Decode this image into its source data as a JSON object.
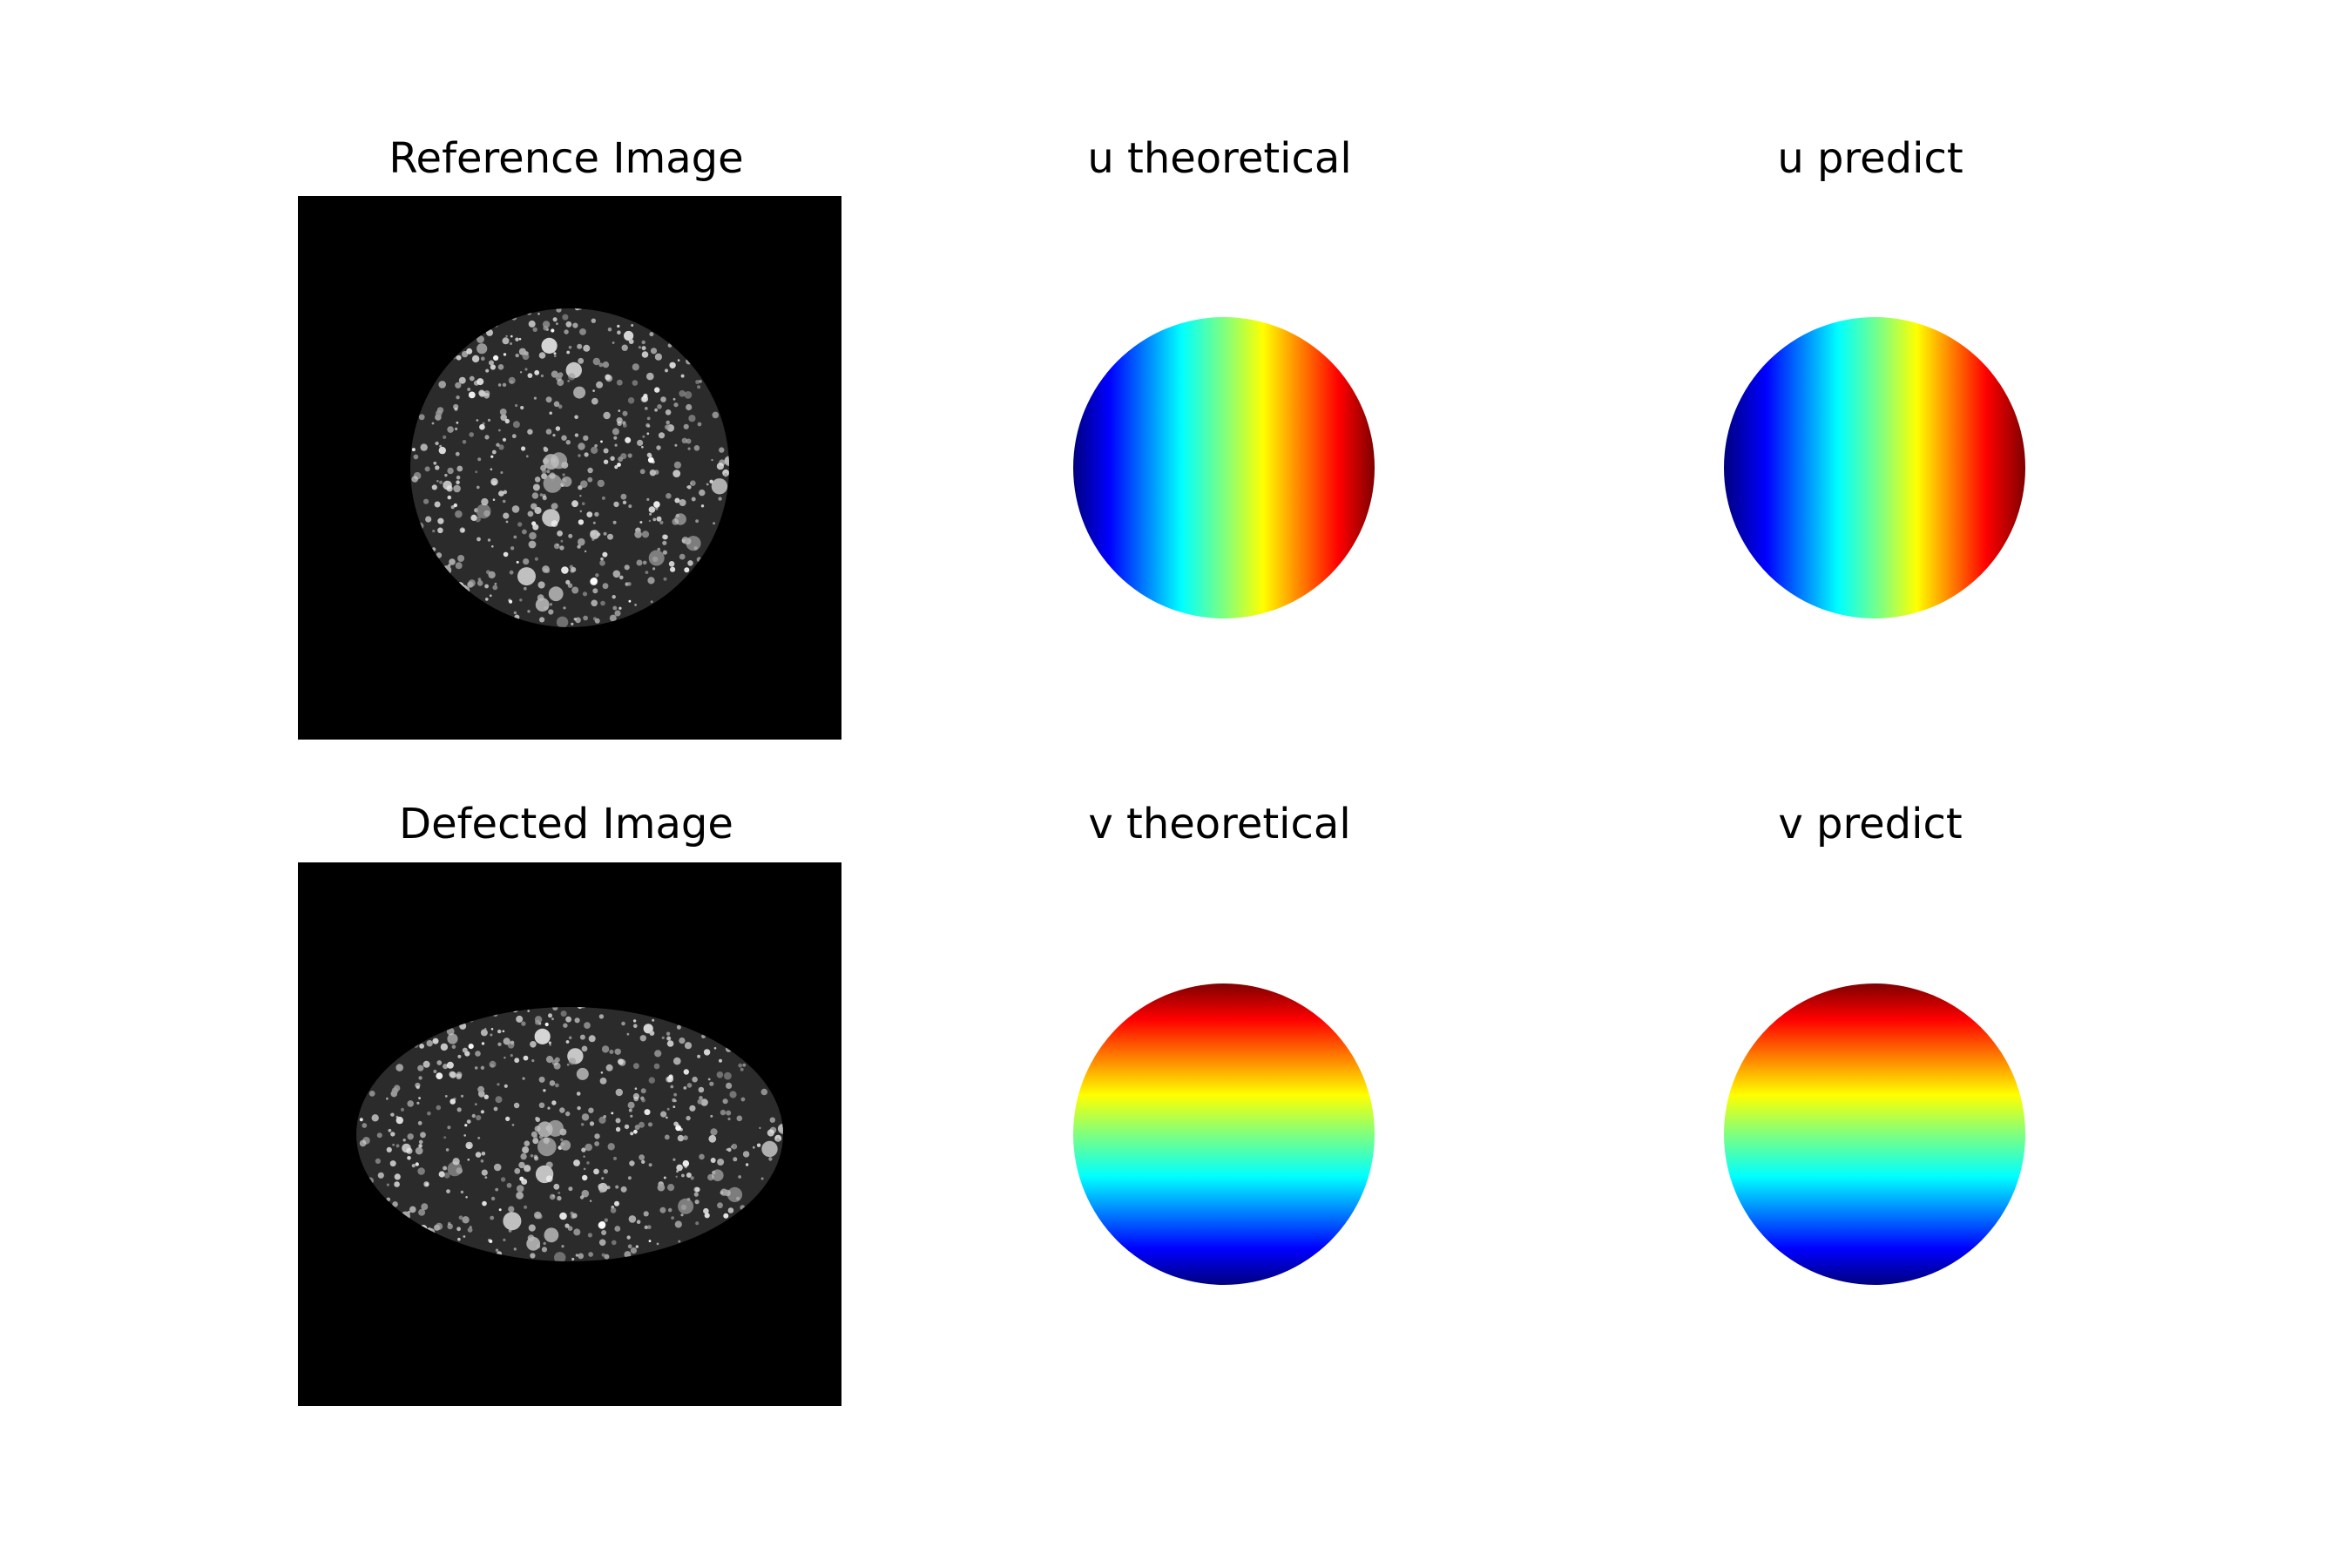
{
  "figure": {
    "panels": [
      {
        "title": "Reference Image",
        "kind": "speckle",
        "shape": "circle"
      },
      {
        "title": "u theoretical",
        "kind": "field",
        "direction": "horizontal",
        "colormap": "jet"
      },
      {
        "title": "u predict",
        "kind": "field",
        "direction": "horizontal",
        "colormap": "jet"
      },
      {
        "title": "Defected Image",
        "kind": "speckle",
        "shape": "ellipse"
      },
      {
        "title": "v theoretical",
        "kind": "field",
        "direction": "vertical",
        "colormap": "jet"
      },
      {
        "title": "v predict",
        "kind": "field",
        "direction": "vertical",
        "colormap": "jet"
      }
    ]
  },
  "chart_data": {
    "type": "heatmap",
    "layout": "2x3 grid of image panels",
    "axes_visible": false,
    "colormap": "jet",
    "colormap_stops": [
      "#00007f",
      "#0000ff",
      "#00ffff",
      "#ffff00",
      "#ff0000",
      "#7f0000"
    ],
    "panels": [
      {
        "title": "Reference Image",
        "content": "grayscale speckle pattern inside a circular region on black background"
      },
      {
        "title": "u theoretical",
        "content": "displacement field u, increasing left to right (blue to red)"
      },
      {
        "title": "u predict",
        "content": "predicted displacement field u, increasing left to right (blue to red)"
      },
      {
        "title": "Defected Image",
        "content": "grayscale speckle pattern inside an elliptical region on black background"
      },
      {
        "title": "v theoretical",
        "content": "displacement field v, increasing bottom to top (blue to red)"
      },
      {
        "title": "v predict",
        "content": "predicted displacement field v, increasing bottom to top (blue to red)"
      }
    ]
  }
}
